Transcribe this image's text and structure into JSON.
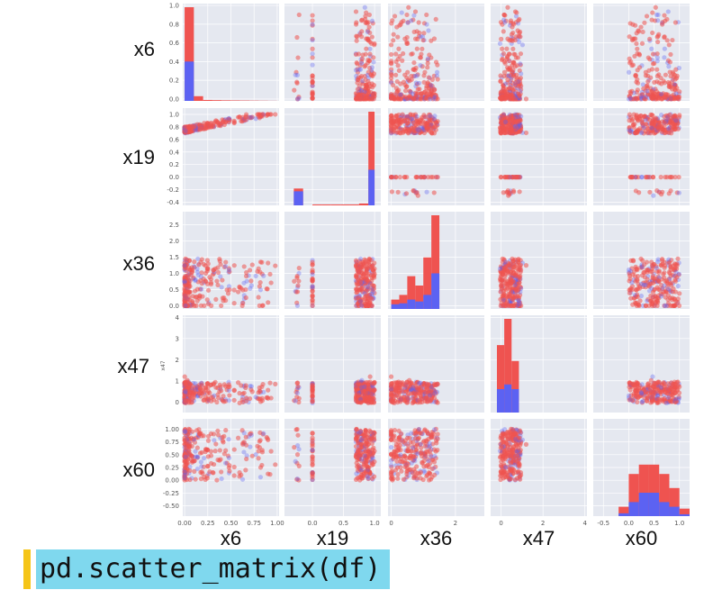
{
  "caption": "pd.scatter_matrix(df)",
  "variables": [
    "x6",
    "x19",
    "x36",
    "x47",
    "x60"
  ],
  "colors": {
    "panel_bg": "#e5e8f0",
    "grid": "#ffffff",
    "red": "#ef5350",
    "blue": "#5c62f2",
    "caption_bg": "#7fd8ee",
    "caption_accent": "#f5c518"
  },
  "row_label_suffix_x47": "x47",
  "y_axis_small_title": "x47",
  "chart_data": {
    "type": "scatter_matrix",
    "variables": [
      "x6",
      "x19",
      "x36",
      "x47",
      "x60"
    ],
    "series": [
      {
        "name": "",
        "color": "#ef5350"
      },
      {
        "name": "",
        "color": "#5c62f2"
      }
    ],
    "ranges": {
      "x6": [
        -0.02,
        1.02
      ],
      "x19": [
        -0.45,
        1.1
      ],
      "x36": [
        -0.1,
        2.9
      ],
      "x47": [
        -0.5,
        4.1
      ],
      "x60": [
        -0.7,
        1.2
      ]
    },
    "y_ticks": {
      "x6": [
        "1.0",
        "0.8",
        "0.6",
        "0.4",
        "0.2",
        "0.0"
      ],
      "x19": [
        "1.0",
        "0.8",
        "0.6",
        "0.4",
        "0.2",
        "0.0",
        "-0.2",
        "-0.4"
      ],
      "x36": [
        "2.5",
        "2.0",
        "1.5",
        "1.0",
        "0.5",
        "0.0"
      ],
      "x47": [
        "4",
        "3",
        "2",
        "1",
        "0"
      ],
      "x60": [
        "1.00",
        "0.75",
        "0.50",
        "0.25",
        "0.00",
        "-0.25",
        "-0.50"
      ]
    },
    "y_tick_values": {
      "x6": [
        1.0,
        0.8,
        0.6,
        0.4,
        0.2,
        0.0
      ],
      "x19": [
        1.0,
        0.8,
        0.6,
        0.4,
        0.2,
        0.0,
        -0.2,
        -0.4
      ],
      "x36": [
        2.5,
        2.0,
        1.5,
        1.0,
        0.5,
        0.0
      ],
      "x47": [
        4,
        3,
        2,
        1,
        0
      ],
      "x60": [
        1.0,
        0.75,
        0.5,
        0.25,
        0.0,
        -0.25,
        -0.5
      ]
    },
    "y_tick_display": {
      "x6": [
        "1.0",
        "0.8",
        "0.6",
        "0.4",
        "0.2",
        "0.0"
      ],
      "x19": [
        "1.0",
        "0.8",
        "0.6",
        "0.4",
        "0.2",
        "0.0",
        "-0.2",
        "-0.4"
      ],
      "x36": [
        "2.5",
        "2.0",
        "1.5",
        "1.0",
        "0.5",
        "0.0"
      ],
      "x47": [
        "4",
        "3",
        "2",
        "1",
        "0"
      ],
      "x60": [
        "1.00",
        "0.75",
        "0.50",
        "0.25",
        "0.00",
        "-0.25",
        "-0.50"
      ]
    },
    "x_ticks": {
      "x6": {
        "values": [
          0.0,
          0.25,
          0.5,
          0.75,
          1.0
        ],
        "labels": [
          "0.00",
          "0.25",
          "0.50",
          "0.75",
          "1.00"
        ]
      },
      "x19": {
        "values": [
          0.0,
          0.5,
          1.0
        ],
        "labels": [
          "0.0",
          "0.5",
          "1.0"
        ]
      },
      "x36": {
        "values": [
          0,
          2
        ],
        "labels": [
          "0",
          "2"
        ]
      },
      "x47": {
        "values": [
          0,
          2,
          4
        ],
        "labels": [
          "0",
          "2",
          "4"
        ]
      },
      "x60": {
        "values": [
          -0.5,
          0.0,
          0.5,
          1.0
        ],
        "labels": [
          "-0.5",
          "0.0",
          "0.5",
          "1.0"
        ]
      }
    },
    "histograms": {
      "x6": {
        "bins": [
          0.0,
          0.1,
          0.2,
          0.3,
          0.4,
          0.5,
          0.6,
          0.7,
          0.8,
          0.9,
          1.0
        ],
        "red": [
          1.0,
          0.05,
          0.01,
          0.008,
          0.006,
          0.005,
          0.004,
          0.003,
          0.002,
          0.001
        ],
        "blue": [
          0.42,
          0.0,
          0.0,
          0.0,
          0.0,
          0.0,
          0.0,
          0.0,
          0.0,
          0.0
        ]
      },
      "x19": {
        "bins": [
          -0.3,
          -0.15,
          0.0,
          0.15,
          0.3,
          0.45,
          0.6,
          0.75,
          0.9,
          1.0
        ],
        "red": [
          0.18,
          0.0,
          0.01,
          0.01,
          0.01,
          0.01,
          0.01,
          0.02,
          1.0
        ],
        "blue": [
          0.15,
          0.0,
          0.0,
          0.0,
          0.0,
          0.0,
          0.0,
          0.0,
          0.38
        ]
      },
      "x36": {
        "bins": [
          0.0,
          0.25,
          0.5,
          0.75,
          1.0,
          1.25,
          1.5
        ],
        "red": [
          0.1,
          0.15,
          0.35,
          0.25,
          0.55,
          1.0
        ],
        "blue": [
          0.05,
          0.06,
          0.1,
          0.08,
          0.15,
          0.38
        ]
      },
      "x47": {
        "bins": [
          -0.2,
          0.15,
          0.5,
          0.85,
          1.2
        ],
        "red": [
          0.72,
          1.0,
          0.55,
          0.0
        ],
        "blue": [
          0.25,
          0.3,
          0.25,
          0.0
        ]
      },
      "x60": {
        "bins": [
          -0.2,
          0.0,
          0.2,
          0.4,
          0.6,
          0.8,
          1.0,
          1.2
        ],
        "red": [
          0.1,
          0.45,
          0.55,
          0.55,
          0.45,
          0.3,
          0.08
        ],
        "blue": [
          0.03,
          0.15,
          0.25,
          0.25,
          0.15,
          0.1,
          0.02
        ]
      }
    },
    "grid": true
  }
}
